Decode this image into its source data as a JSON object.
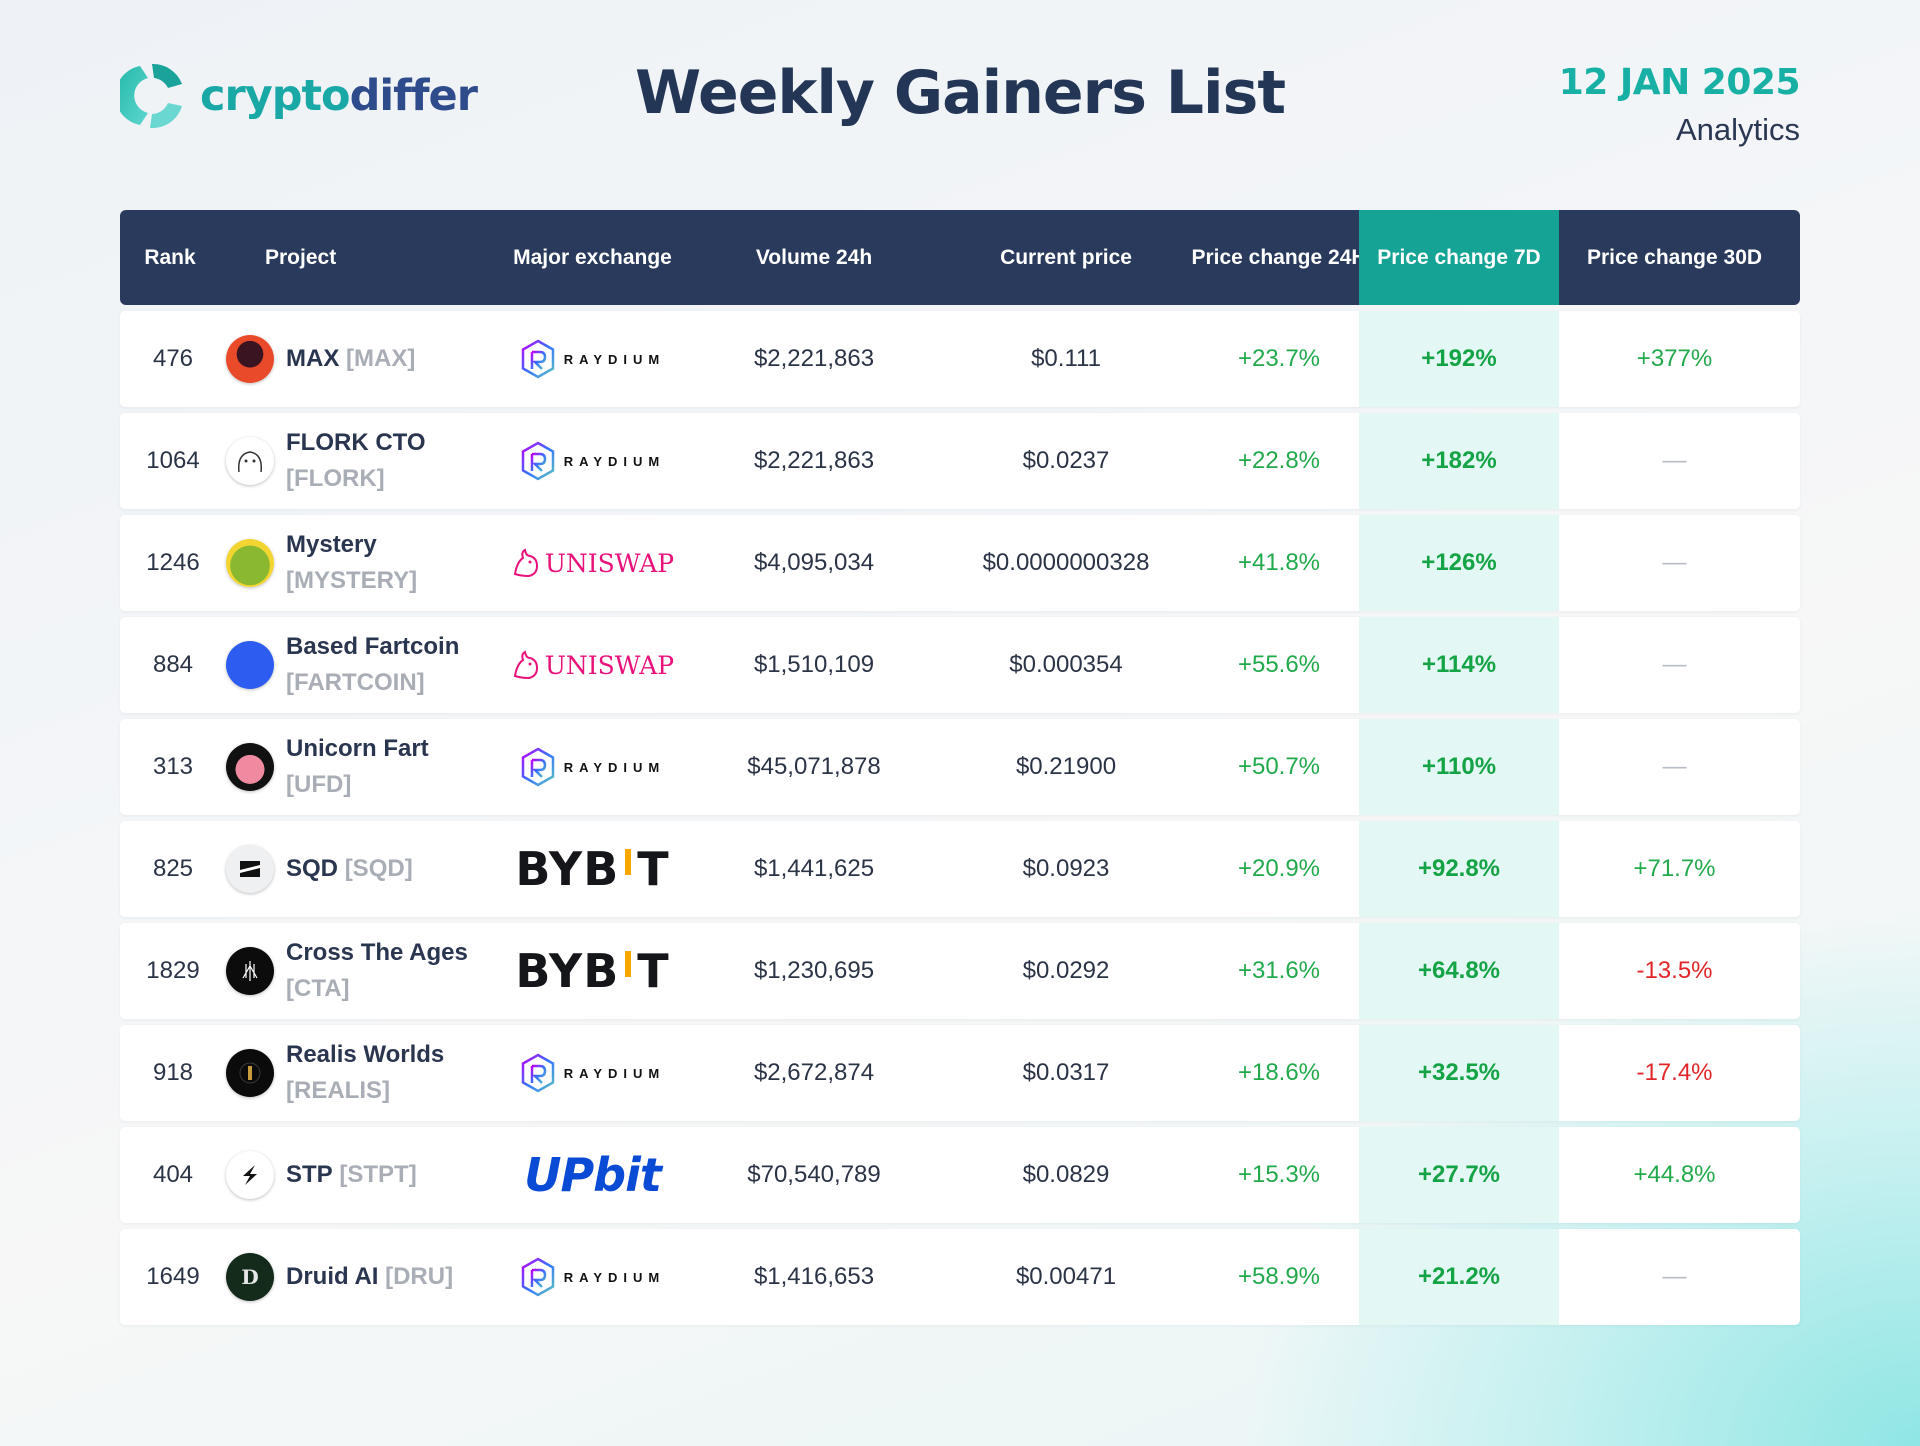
{
  "brand": {
    "name_part1": "crypto",
    "name_part2": "differ"
  },
  "header": {
    "title": "Weekly Gainers List",
    "date": "12 JAN 2025",
    "subtitle": "Analytics"
  },
  "colors": {
    "accent": "#15a396",
    "header_bg": "#2a3a5c",
    "positive": "#22a94b",
    "negative": "#e0262a",
    "brand_teal": "#1aa8a6",
    "brand_blue": "#2e4b8c"
  },
  "table": {
    "columns": [
      "Rank",
      "Project",
      "Major exchange",
      "Volume 24h",
      "Current price",
      "Price change 24H",
      "Price change 7D",
      "Price change 30D"
    ],
    "highlight_column": "Price change 7D",
    "rows": [
      {
        "rank": "476",
        "name": "MAX",
        "ticker": "[MAX]",
        "exchange": "RAYDIUM",
        "exchange_icon": "raydium-logo",
        "avatar_icon": "max-avatar",
        "volume": "$2,221,863",
        "price": "$0.111",
        "ch24": "+23.7%",
        "ch7": "+192%",
        "ch30": "+377%"
      },
      {
        "rank": "1064",
        "name": "FLORK CTO",
        "ticker": "[FLORK]",
        "exchange": "RAYDIUM",
        "exchange_icon": "raydium-logo",
        "avatar_icon": "flork-avatar",
        "volume": "$2,221,863",
        "price": "$0.0237",
        "ch24": "+22.8%",
        "ch7": "+182%",
        "ch30": "—"
      },
      {
        "rank": "1246",
        "name": "Mystery",
        "ticker": "[MYSTERY]",
        "exchange": "UNISWAP",
        "exchange_icon": "uniswap-logo",
        "avatar_icon": "mystery-avatar",
        "volume": "$4,095,034",
        "price": "$0.0000000328",
        "ch24": "+41.8%",
        "ch7": "+126%",
        "ch30": "—"
      },
      {
        "rank": "884",
        "name": "Based Fartcoin",
        "ticker": "[FARTCOIN]",
        "exchange": "UNISWAP",
        "exchange_icon": "uniswap-logo",
        "avatar_icon": "fartcoin-avatar",
        "volume": "$1,510,109",
        "price": "$0.000354",
        "ch24": "+55.6%",
        "ch7": "+114%",
        "ch30": "—"
      },
      {
        "rank": "313",
        "name": "Unicorn Fart",
        "ticker": "[UFD]",
        "exchange": "RAYDIUM",
        "exchange_icon": "raydium-logo",
        "avatar_icon": "unicorn-avatar",
        "volume": "$45,071,878",
        "price": "$0.21900",
        "ch24": "+50.7%",
        "ch7": "+110%",
        "ch30": "—"
      },
      {
        "rank": "825",
        "name": "SQD",
        "ticker": "[SQD]",
        "exchange": "BYBIT",
        "exchange_icon": "bybit-logo",
        "avatar_icon": "sqd-avatar",
        "volume": "$1,441,625",
        "price": "$0.0923",
        "ch24": "+20.9%",
        "ch7": "+92.8%",
        "ch30": "+71.7%"
      },
      {
        "rank": "1829",
        "name": "Cross The Ages",
        "ticker": "[CTA]",
        "exchange": "BYBIT",
        "exchange_icon": "bybit-logo",
        "avatar_icon": "cta-avatar",
        "volume": "$1,230,695",
        "price": "$0.0292",
        "ch24": "+31.6%",
        "ch7": "+64.8%",
        "ch30": "-13.5%"
      },
      {
        "rank": "918",
        "name": "Realis Worlds",
        "ticker": "[REALIS]",
        "exchange": "RAYDIUM",
        "exchange_icon": "raydium-logo",
        "avatar_icon": "realis-avatar",
        "volume": "$2,672,874",
        "price": "$0.0317",
        "ch24": "+18.6%",
        "ch7": "+32.5%",
        "ch30": "-17.4%"
      },
      {
        "rank": "404",
        "name": "STP",
        "ticker": "[STPT]",
        "exchange": "UPbit",
        "exchange_icon": "upbit-logo",
        "avatar_icon": "stp-avatar",
        "volume": "$70,540,789",
        "price": "$0.0829",
        "ch24": "+15.3%",
        "ch7": "+27.7%",
        "ch30": "+44.8%"
      },
      {
        "rank": "1649",
        "name": "Druid AI",
        "ticker": "[DRU]",
        "exchange": "RAYDIUM",
        "exchange_icon": "raydium-logo",
        "avatar_icon": "druid-avatar",
        "volume": "$1,416,653",
        "price": "$0.00471",
        "ch24": "+58.9%",
        "ch7": "+21.2%",
        "ch30": "—"
      }
    ]
  }
}
